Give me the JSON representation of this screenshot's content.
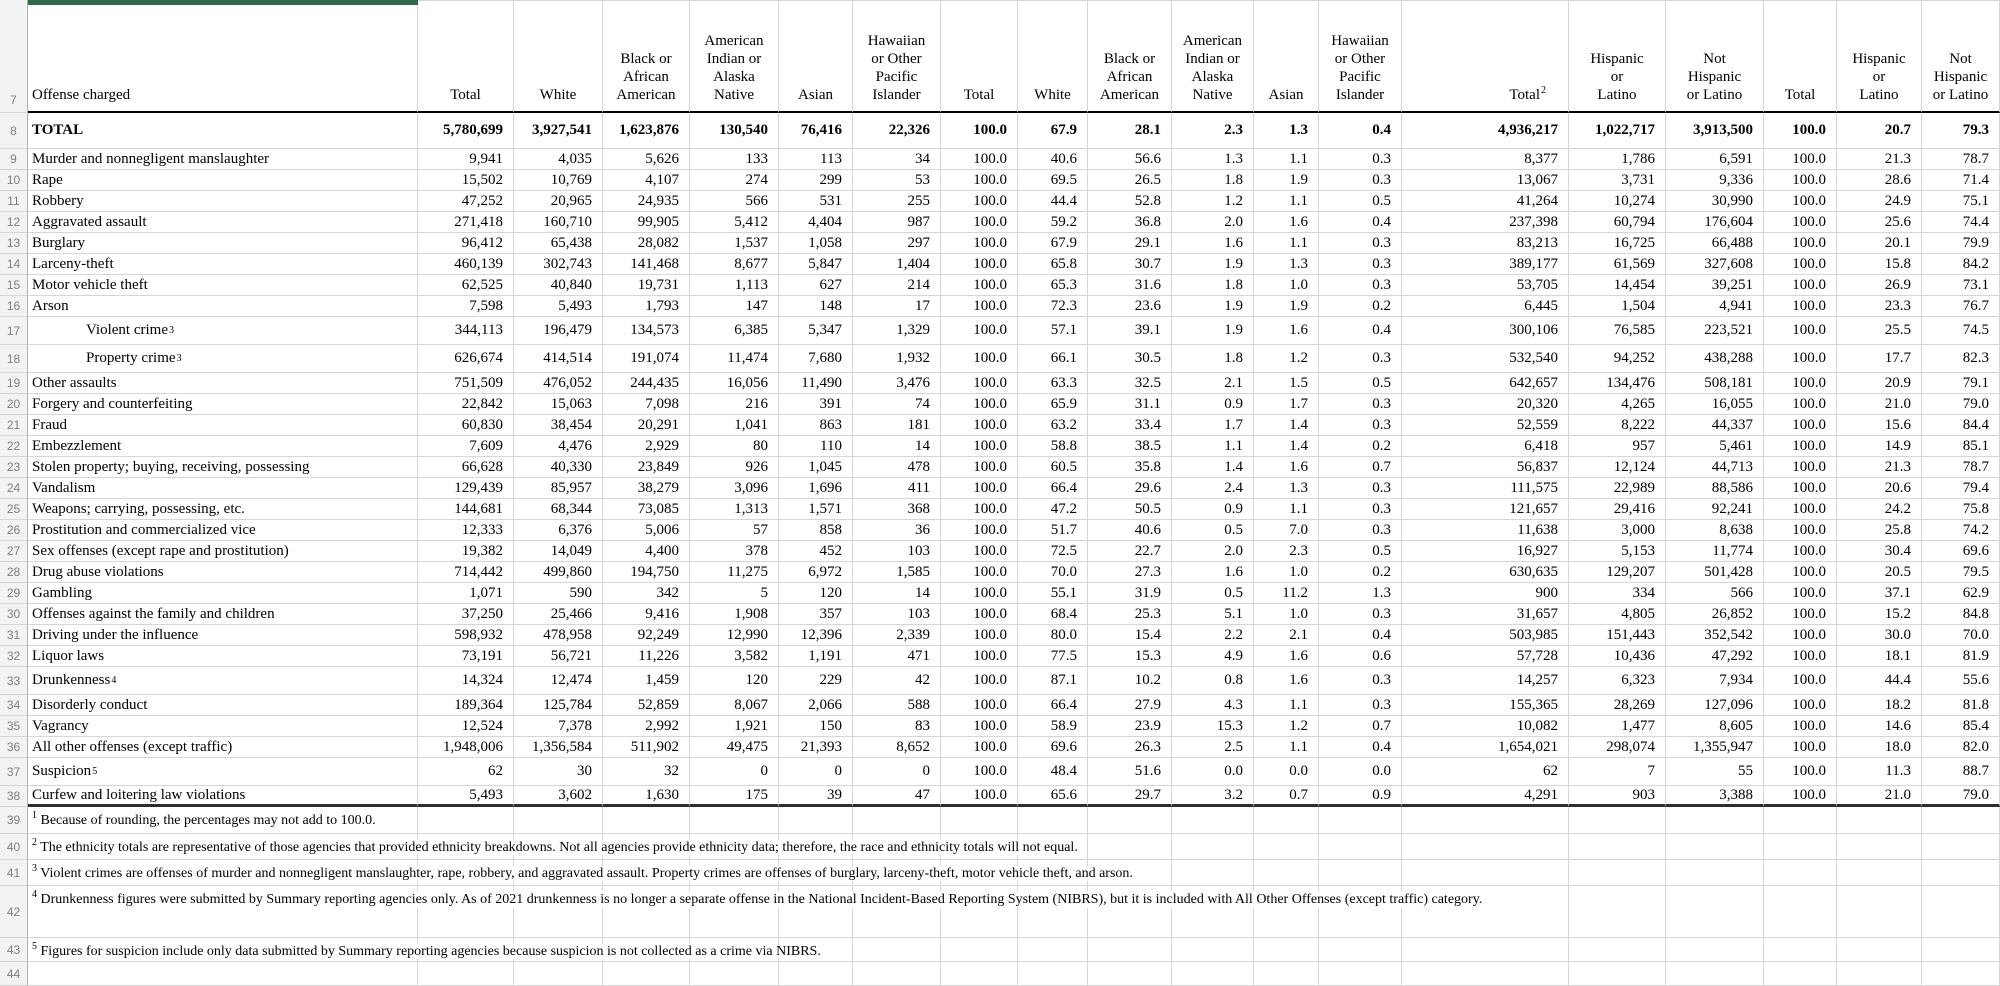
{
  "sheet": {
    "accent_green": "#2e6b4a",
    "header": {
      "row_num": "7",
      "offense": "Offense charged",
      "cols": [
        {
          "t": "Total"
        },
        {
          "t": "White"
        },
        {
          "t": "Black or\nAfrican\nAmerican"
        },
        {
          "t": "American\nIndian or\nAlaska\nNative"
        },
        {
          "t": "Asian"
        },
        {
          "t": "Hawaiian\nor Other\nPacific\nIslander"
        },
        {
          "t": "Total"
        },
        {
          "t": "White"
        },
        {
          "t": "Black or\nAfrican\nAmerican"
        },
        {
          "t": "American\nIndian or\nAlaska\nNative"
        },
        {
          "t": "Asian"
        },
        {
          "t": "Hawaiian\nor Other\nPacific\nIslander"
        },
        {
          "t": "Total",
          "sup": "2",
          "right": true
        },
        {
          "t": "Hispanic\nor\nLatino"
        },
        {
          "t": "Not\nHispanic\nor Latino"
        },
        {
          "t": "Total"
        },
        {
          "t": "Hispanic\nor\nLatino"
        },
        {
          "t": "Not\nHispanic\nor Latino"
        }
      ]
    },
    "rows": [
      {
        "n": "8",
        "label": "TOTAL",
        "bold": true,
        "v": [
          "5,780,699",
          "3,927,541",
          "1,623,876",
          "130,540",
          "76,416",
          "22,326",
          "100.0",
          "67.9",
          "28.1",
          "2.3",
          "1.3",
          "0.4",
          "4,936,217",
          "1,022,717",
          "3,913,500",
          "100.0",
          "20.7",
          "79.3"
        ]
      },
      {
        "n": "9",
        "label": "Murder and nonnegligent manslaughter",
        "v": [
          "9,941",
          "4,035",
          "5,626",
          "133",
          "113",
          "34",
          "100.0",
          "40.6",
          "56.6",
          "1.3",
          "1.1",
          "0.3",
          "8,377",
          "1,786",
          "6,591",
          "100.0",
          "21.3",
          "78.7"
        ]
      },
      {
        "n": "10",
        "label": "Rape",
        "v": [
          "15,502",
          "10,769",
          "4,107",
          "274",
          "299",
          "53",
          "100.0",
          "69.5",
          "26.5",
          "1.8",
          "1.9",
          "0.3",
          "13,067",
          "3,731",
          "9,336",
          "100.0",
          "28.6",
          "71.4"
        ]
      },
      {
        "n": "11",
        "label": "Robbery",
        "v": [
          "47,252",
          "20,965",
          "24,935",
          "566",
          "531",
          "255",
          "100.0",
          "44.4",
          "52.8",
          "1.2",
          "1.1",
          "0.5",
          "41,264",
          "10,274",
          "30,990",
          "100.0",
          "24.9",
          "75.1"
        ]
      },
      {
        "n": "12",
        "label": "Aggravated assault",
        "v": [
          "271,418",
          "160,710",
          "99,905",
          "5,412",
          "4,404",
          "987",
          "100.0",
          "59.2",
          "36.8",
          "2.0",
          "1.6",
          "0.4",
          "237,398",
          "60,794",
          "176,604",
          "100.0",
          "25.6",
          "74.4"
        ]
      },
      {
        "n": "13",
        "label": "Burglary",
        "v": [
          "96,412",
          "65,438",
          "28,082",
          "1,537",
          "1,058",
          "297",
          "100.0",
          "67.9",
          "29.1",
          "1.6",
          "1.1",
          "0.3",
          "83,213",
          "16,725",
          "66,488",
          "100.0",
          "20.1",
          "79.9"
        ]
      },
      {
        "n": "14",
        "label": "Larceny-theft",
        "v": [
          "460,139",
          "302,743",
          "141,468",
          "8,677",
          "5,847",
          "1,404",
          "100.0",
          "65.8",
          "30.7",
          "1.9",
          "1.3",
          "0.3",
          "389,177",
          "61,569",
          "327,608",
          "100.0",
          "15.8",
          "84.2"
        ]
      },
      {
        "n": "15",
        "label": "Motor vehicle theft",
        "v": [
          "62,525",
          "40,840",
          "19,731",
          "1,113",
          "627",
          "214",
          "100.0",
          "65.3",
          "31.6",
          "1.8",
          "1.0",
          "0.3",
          "53,705",
          "14,454",
          "39,251",
          "100.0",
          "26.9",
          "73.1"
        ]
      },
      {
        "n": "16",
        "label": "Arson",
        "v": [
          "7,598",
          "5,493",
          "1,793",
          "147",
          "148",
          "17",
          "100.0",
          "72.3",
          "23.6",
          "1.9",
          "1.9",
          "0.2",
          "6,445",
          "1,504",
          "4,941",
          "100.0",
          "23.3",
          "76.7"
        ]
      },
      {
        "n": "17",
        "label": "Violent crime",
        "sup": "3",
        "indent": true,
        "v": [
          "344,113",
          "196,479",
          "134,573",
          "6,385",
          "5,347",
          "1,329",
          "100.0",
          "57.1",
          "39.1",
          "1.9",
          "1.6",
          "0.4",
          "300,106",
          "76,585",
          "223,521",
          "100.0",
          "25.5",
          "74.5"
        ]
      },
      {
        "n": "18",
        "label": "Property crime",
        "sup": "3",
        "indent": true,
        "v": [
          "626,674",
          "414,514",
          "191,074",
          "11,474",
          "7,680",
          "1,932",
          "100.0",
          "66.1",
          "30.5",
          "1.8",
          "1.2",
          "0.3",
          "532,540",
          "94,252",
          "438,288",
          "100.0",
          "17.7",
          "82.3"
        ]
      },
      {
        "n": "19",
        "label": "Other assaults",
        "v": [
          "751,509",
          "476,052",
          "244,435",
          "16,056",
          "11,490",
          "3,476",
          "100.0",
          "63.3",
          "32.5",
          "2.1",
          "1.5",
          "0.5",
          "642,657",
          "134,476",
          "508,181",
          "100.0",
          "20.9",
          "79.1"
        ]
      },
      {
        "n": "20",
        "label": "Forgery and counterfeiting",
        "v": [
          "22,842",
          "15,063",
          "7,098",
          "216",
          "391",
          "74",
          "100.0",
          "65.9",
          "31.1",
          "0.9",
          "1.7",
          "0.3",
          "20,320",
          "4,265",
          "16,055",
          "100.0",
          "21.0",
          "79.0"
        ]
      },
      {
        "n": "21",
        "label": "Fraud",
        "v": [
          "60,830",
          "38,454",
          "20,291",
          "1,041",
          "863",
          "181",
          "100.0",
          "63.2",
          "33.4",
          "1.7",
          "1.4",
          "0.3",
          "52,559",
          "8,222",
          "44,337",
          "100.0",
          "15.6",
          "84.4"
        ]
      },
      {
        "n": "22",
        "label": "Embezzlement",
        "v": [
          "7,609",
          "4,476",
          "2,929",
          "80",
          "110",
          "14",
          "100.0",
          "58.8",
          "38.5",
          "1.1",
          "1.4",
          "0.2",
          "6,418",
          "957",
          "5,461",
          "100.0",
          "14.9",
          "85.1"
        ]
      },
      {
        "n": "23",
        "label": "Stolen property; buying, receiving, possessing",
        "v": [
          "66,628",
          "40,330",
          "23,849",
          "926",
          "1,045",
          "478",
          "100.0",
          "60.5",
          "35.8",
          "1.4",
          "1.6",
          "0.7",
          "56,837",
          "12,124",
          "44,713",
          "100.0",
          "21.3",
          "78.7"
        ]
      },
      {
        "n": "24",
        "label": "Vandalism",
        "v": [
          "129,439",
          "85,957",
          "38,279",
          "3,096",
          "1,696",
          "411",
          "100.0",
          "66.4",
          "29.6",
          "2.4",
          "1.3",
          "0.3",
          "111,575",
          "22,989",
          "88,586",
          "100.0",
          "20.6",
          "79.4"
        ]
      },
      {
        "n": "25",
        "label": "Weapons; carrying, possessing, etc.",
        "v": [
          "144,681",
          "68,344",
          "73,085",
          "1,313",
          "1,571",
          "368",
          "100.0",
          "47.2",
          "50.5",
          "0.9",
          "1.1",
          "0.3",
          "121,657",
          "29,416",
          "92,241",
          "100.0",
          "24.2",
          "75.8"
        ]
      },
      {
        "n": "26",
        "label": "Prostitution and commercialized vice",
        "v": [
          "12,333",
          "6,376",
          "5,006",
          "57",
          "858",
          "36",
          "100.0",
          "51.7",
          "40.6",
          "0.5",
          "7.0",
          "0.3",
          "11,638",
          "3,000",
          "8,638",
          "100.0",
          "25.8",
          "74.2"
        ]
      },
      {
        "n": "27",
        "label": "Sex offenses (except rape and prostitution)",
        "v": [
          "19,382",
          "14,049",
          "4,400",
          "378",
          "452",
          "103",
          "100.0",
          "72.5",
          "22.7",
          "2.0",
          "2.3",
          "0.5",
          "16,927",
          "5,153",
          "11,774",
          "100.0",
          "30.4",
          "69.6"
        ]
      },
      {
        "n": "28",
        "label": "Drug abuse violations",
        "v": [
          "714,442",
          "499,860",
          "194,750",
          "11,275",
          "6,972",
          "1,585",
          "100.0",
          "70.0",
          "27.3",
          "1.6",
          "1.0",
          "0.2",
          "630,635",
          "129,207",
          "501,428",
          "100.0",
          "20.5",
          "79.5"
        ]
      },
      {
        "n": "29",
        "label": "Gambling",
        "v": [
          "1,071",
          "590",
          "342",
          "5",
          "120",
          "14",
          "100.0",
          "55.1",
          "31.9",
          "0.5",
          "11.2",
          "1.3",
          "900",
          "334",
          "566",
          "100.0",
          "37.1",
          "62.9"
        ]
      },
      {
        "n": "30",
        "label": "Offenses against the family and children",
        "v": [
          "37,250",
          "25,466",
          "9,416",
          "1,908",
          "357",
          "103",
          "100.0",
          "68.4",
          "25.3",
          "5.1",
          "1.0",
          "0.3",
          "31,657",
          "4,805",
          "26,852",
          "100.0",
          "15.2",
          "84.8"
        ]
      },
      {
        "n": "31",
        "label": "Driving under the influence",
        "v": [
          "598,932",
          "478,958",
          "92,249",
          "12,990",
          "12,396",
          "2,339",
          "100.0",
          "80.0",
          "15.4",
          "2.2",
          "2.1",
          "0.4",
          "503,985",
          "151,443",
          "352,542",
          "100.0",
          "30.0",
          "70.0"
        ]
      },
      {
        "n": "32",
        "label": "Liquor laws",
        "v": [
          "73,191",
          "56,721",
          "11,226",
          "3,582",
          "1,191",
          "471",
          "100.0",
          "77.5",
          "15.3",
          "4.9",
          "1.6",
          "0.6",
          "57,728",
          "10,436",
          "47,292",
          "100.0",
          "18.1",
          "81.9"
        ]
      },
      {
        "n": "33",
        "label": "Drunkenness",
        "sup": "4",
        "v": [
          "14,324",
          "12,474",
          "1,459",
          "120",
          "229",
          "42",
          "100.0",
          "87.1",
          "10.2",
          "0.8",
          "1.6",
          "0.3",
          "14,257",
          "6,323",
          "7,934",
          "100.0",
          "44.4",
          "55.6"
        ]
      },
      {
        "n": "34",
        "label": "Disorderly conduct",
        "v": [
          "189,364",
          "125,784",
          "52,859",
          "8,067",
          "2,066",
          "588",
          "100.0",
          "66.4",
          "27.9",
          "4.3",
          "1.1",
          "0.3",
          "155,365",
          "28,269",
          "127,096",
          "100.0",
          "18.2",
          "81.8"
        ]
      },
      {
        "n": "35",
        "label": "Vagrancy",
        "v": [
          "12,524",
          "7,378",
          "2,992",
          "1,921",
          "150",
          "83",
          "100.0",
          "58.9",
          "23.9",
          "15.3",
          "1.2",
          "0.7",
          "10,082",
          "1,477",
          "8,605",
          "100.0",
          "14.6",
          "85.4"
        ]
      },
      {
        "n": "36",
        "label": "All other offenses (except traffic)",
        "v": [
          "1,948,006",
          "1,356,584",
          "511,902",
          "49,475",
          "21,393",
          "8,652",
          "100.0",
          "69.6",
          "26.3",
          "2.5",
          "1.1",
          "0.4",
          "1,654,021",
          "298,074",
          "1,355,947",
          "100.0",
          "18.0",
          "82.0"
        ]
      },
      {
        "n": "37",
        "label": "Suspicion",
        "sup": "5",
        "v": [
          "62",
          "30",
          "32",
          "0",
          "0",
          "0",
          "100.0",
          "48.4",
          "51.6",
          "0.0",
          "0.0",
          "0.0",
          "62",
          "7",
          "55",
          "100.0",
          "11.3",
          "88.7"
        ]
      },
      {
        "n": "38",
        "label": "Curfew and loitering law violations",
        "v": [
          "5,493",
          "3,602",
          "1,630",
          "175",
          "39",
          "47",
          "100.0",
          "65.6",
          "29.7",
          "3.2",
          "0.7",
          "0.9",
          "4,291",
          "903",
          "3,388",
          "100.0",
          "21.0",
          "79.0"
        ]
      }
    ],
    "footnote_rows": [
      "39",
      "40",
      "41",
      "42",
      "43",
      "44"
    ],
    "footnotes": [
      {
        "sup": "1",
        "text": "Because of rounding, the percentages may not add to 100.0."
      },
      {
        "sup": "2",
        "text": "The ethnicity totals are representative of those agencies that provided ethnicity breakdowns. Not all agencies provide ethnicity data; therefore, the race and ethnicity totals will not equal."
      },
      {
        "sup": "3",
        "text": "Violent crimes are offenses of murder and nonnegligent manslaughter, rape, robbery, and aggravated assault. Property crimes are offenses of burglary, larceny-theft, motor vehicle theft, and arson."
      },
      {
        "sup": "4",
        "text": "Drunkenness figures were submitted by Summary reporting agencies only. As of 2021 drunkenness is no longer a separate offense in the National Incident-Based Reporting System (NIBRS), but it is included with All Other Offenses (except traffic) category.",
        "wrap": true
      },
      {
        "sup": "5",
        "text": "Figures for suspicion include only data submitted by Summary reporting agencies because suspicion is not collected as a crime via NIBRS."
      }
    ]
  }
}
